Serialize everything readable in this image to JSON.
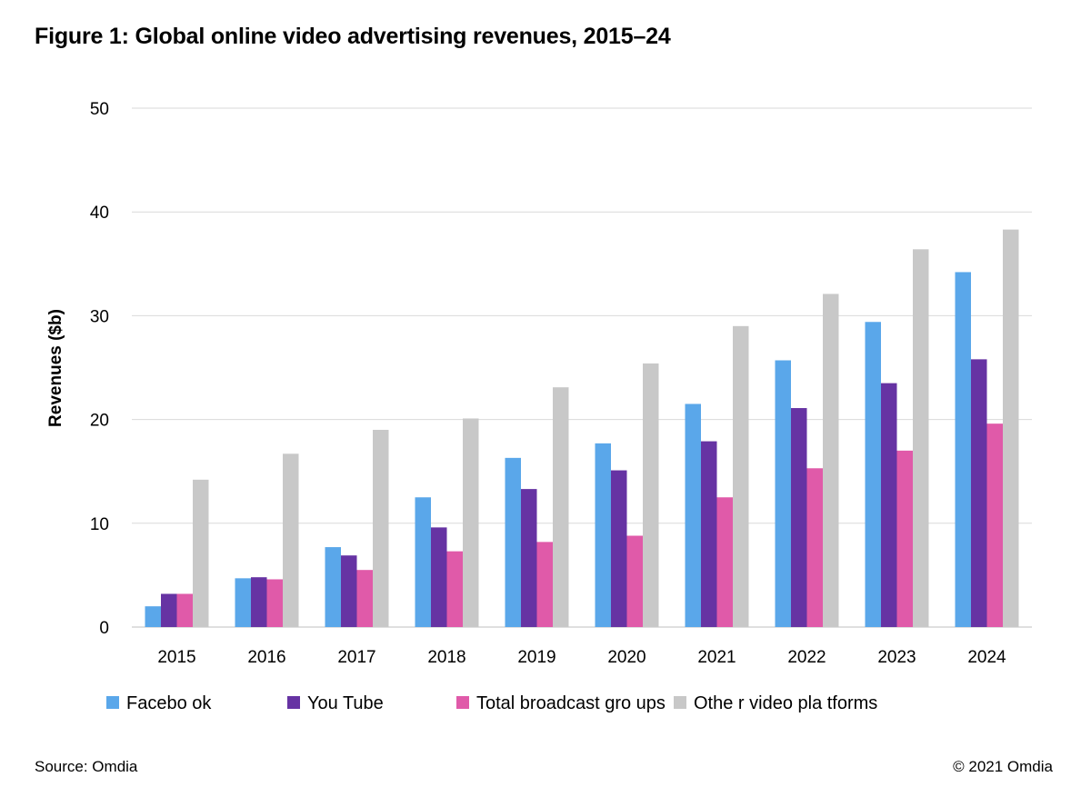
{
  "title": "Figure 1: Global online video advertising revenues, 2015–24",
  "footer": {
    "source": "Source: Omdia",
    "copyright": "© 2021 Omdia"
  },
  "colors": {
    "facebook": "#5aa7ea",
    "youtube": "#6633a3",
    "broadcast": "#e05aa9",
    "other": "#c8c8c8"
  },
  "chart_data": {
    "type": "bar",
    "title": "Figure 1: Global online video advertising revenues, 2015–24",
    "xlabel": "",
    "ylabel": "Revenues ($b)",
    "ylim": [
      0,
      50
    ],
    "yticks": [
      "0",
      "10",
      "20",
      "30",
      "40",
      "50"
    ],
    "grid": true,
    "legend_position": "bottom",
    "categories": [
      "2015",
      "2016",
      "2017",
      "2018",
      "2019",
      "2020",
      "2021",
      "2022",
      "2023",
      "2024"
    ],
    "series": [
      {
        "name": "Facebook",
        "key": "facebook",
        "legend_label": "Facebo ok",
        "values": [
          2.0,
          4.7,
          7.7,
          12.5,
          16.3,
          17.7,
          21.5,
          25.7,
          29.4,
          34.2
        ]
      },
      {
        "name": "YouTube",
        "key": "youtube",
        "legend_label": "You Tube",
        "values": [
          3.2,
          4.8,
          6.9,
          9.6,
          13.3,
          15.1,
          17.9,
          21.1,
          23.5,
          25.8
        ]
      },
      {
        "name": "Total broadcast groups",
        "key": "broadcast",
        "legend_label": "Total broadcast gro ups",
        "values": [
          3.2,
          4.6,
          5.5,
          7.3,
          8.2,
          8.8,
          12.5,
          15.3,
          17.0,
          19.6
        ]
      },
      {
        "name": "Other video platforms",
        "key": "other",
        "legend_label": "Othe r video pla tforms",
        "values": [
          14.2,
          16.7,
          19.0,
          20.1,
          23.1,
          25.4,
          29.0,
          32.1,
          36.4,
          38.3
        ]
      }
    ]
  }
}
